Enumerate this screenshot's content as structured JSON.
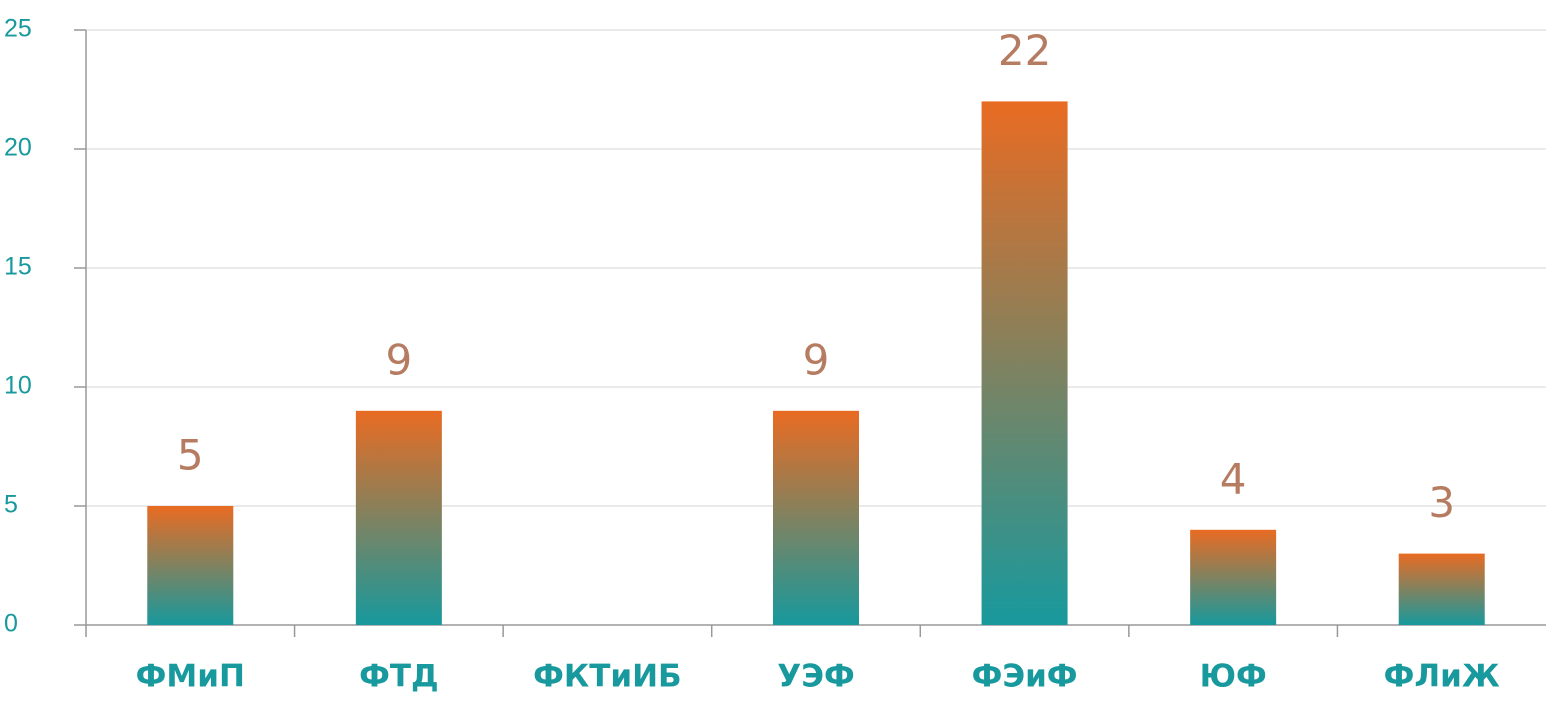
{
  "chart_data": {
    "type": "bar",
    "categories": [
      "ФМиП",
      "ФТД",
      "ФКТиИБ",
      "УЭФ",
      "ФЭиФ",
      "ЮФ",
      "ФЛиЖ"
    ],
    "values": [
      5,
      9,
      null,
      9,
      22,
      4,
      3
    ],
    "gradient_colors": [
      "#e96b22",
      "#17999d"
    ],
    "ylim": [
      0,
      25
    ],
    "yticks": [
      0,
      5,
      10,
      15,
      20,
      25
    ],
    "grid": true
  }
}
